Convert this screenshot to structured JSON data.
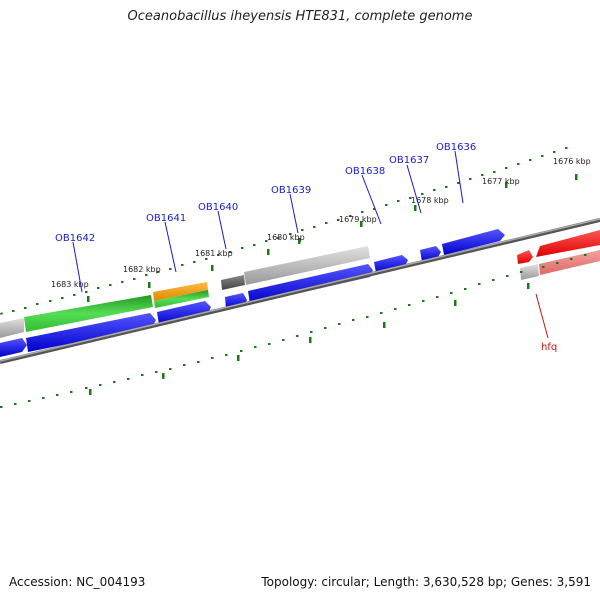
{
  "title": "Oceanobacillus iheyensis HTE831, complete genome",
  "footer": {
    "accession": "Accession: NC_004193",
    "summary": "Topology: circular; Length: 3,630,528 bp; Genes: 3,591"
  },
  "tick_labels": [
    "1676 kbp",
    "1677 kbp",
    "1678 kbp",
    "1679 kbp",
    "1680 kbp",
    "1681 kbp",
    "1682 kbp",
    "1683 kbp"
  ],
  "gene_labels": [
    "OB1636",
    "OB1637",
    "OB1638",
    "OB1639",
    "OB1640",
    "OB1641",
    "OB1642"
  ],
  "highlight_gene": "hfq",
  "colors": {
    "cds": "#1010e0",
    "hfq": "#ee0000",
    "tick": "#1a7a1a",
    "backbone": "#777777",
    "rna_green": "#33bb33",
    "rna_orange": "#ee9911",
    "gray_feature": "#aaaaaa"
  }
}
